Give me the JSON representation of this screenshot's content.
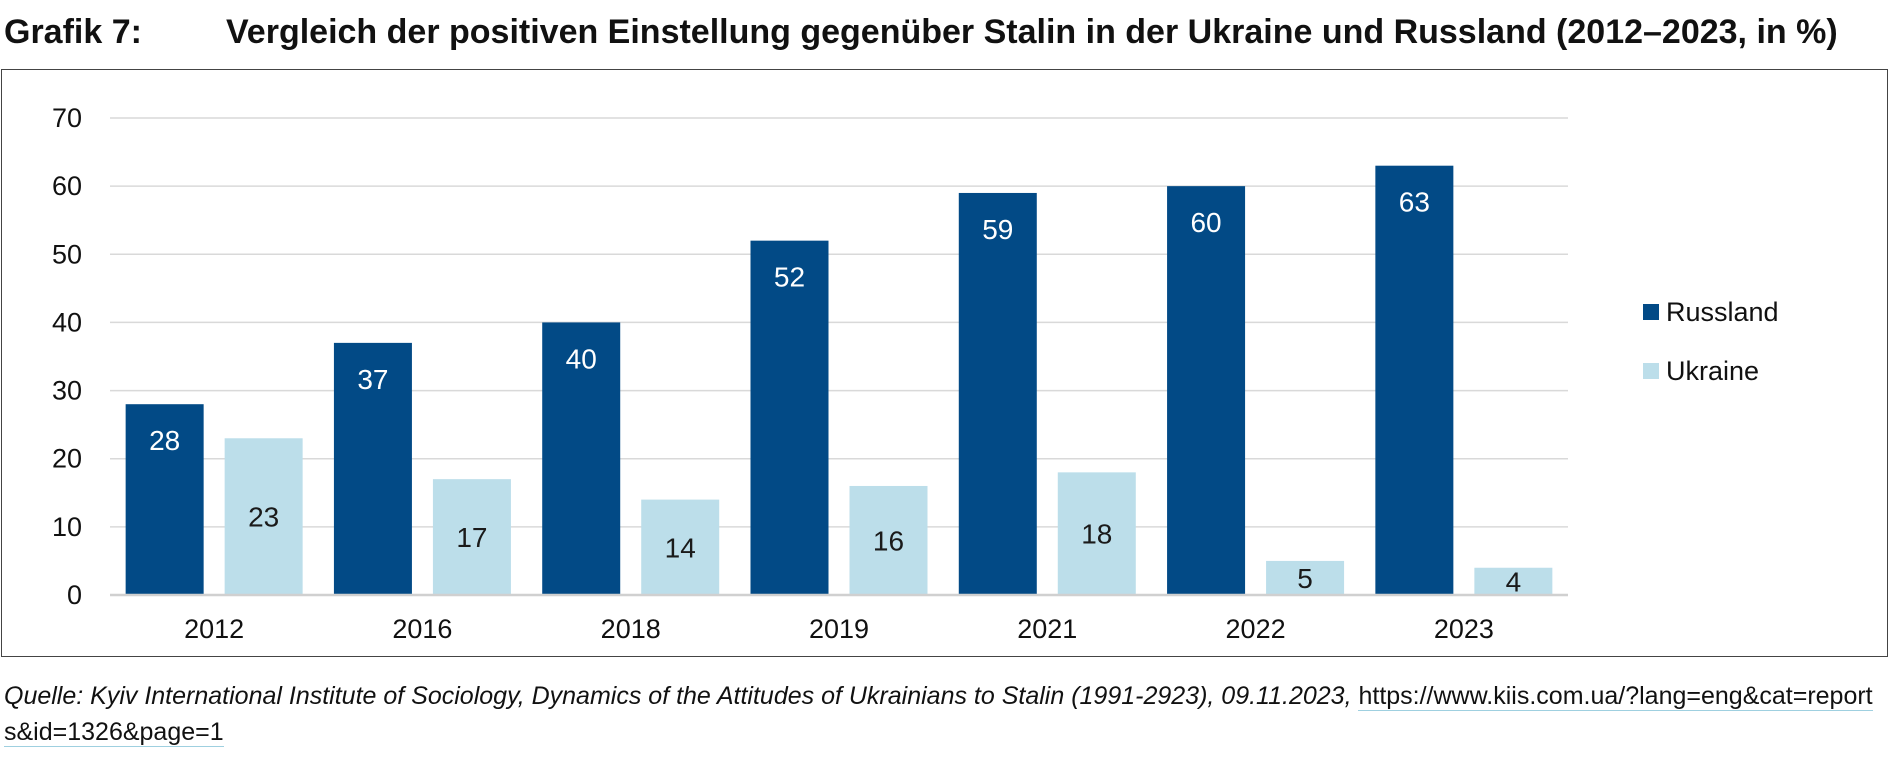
{
  "title": {
    "label": "Grafik 7:",
    "text": "Vergleich der positiven Einstellung gegenüber Stalin in der Ukraine und Russland (2012–2023, in %)"
  },
  "source": {
    "text": "Quelle: Kyiv International Institute of Sociology, Dynamics of the Attitudes of Ukrainians to Stalin (1991-2923), 09.11.2023,",
    "link": "https://www.kiis.com.ua/?lang=eng&cat=reports&id=1326&page=1"
  },
  "chart_data": {
    "type": "bar",
    "categories": [
      "2012",
      "2016",
      "2018",
      "2019",
      "2021",
      "2022",
      "2023"
    ],
    "series": [
      {
        "name": "Russland",
        "color": "#024a86",
        "values": [
          28,
          37,
          40,
          52,
          59,
          60,
          63
        ]
      },
      {
        "name": "Ukraine",
        "color": "#bcdeea",
        "values": [
          23,
          17,
          14,
          16,
          18,
          5,
          4
        ]
      }
    ],
    "ylim": [
      0,
      70
    ],
    "yticks": [
      0,
      10,
      20,
      30,
      40,
      50,
      60,
      70
    ],
    "grid": true,
    "legend": "right",
    "title": "Vergleich der positiven Einstellung gegenüber Stalin in der Ukraine und Russland (2012–2023, in %)",
    "xlabel": "",
    "ylabel": ""
  }
}
